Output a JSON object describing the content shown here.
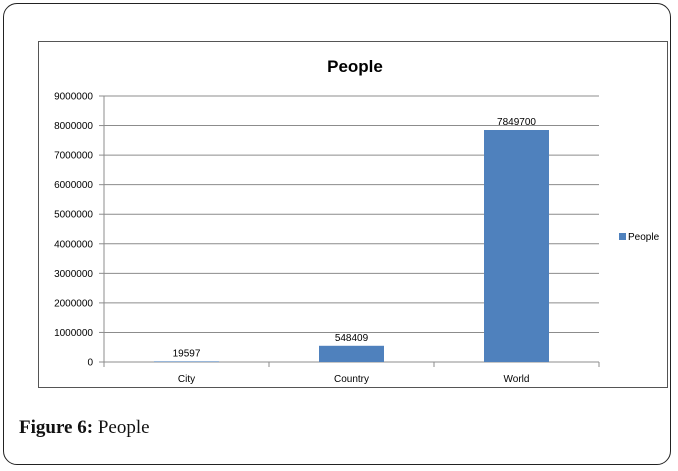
{
  "chart_data": {
    "type": "bar",
    "title": "People",
    "categories": [
      "City",
      "Country",
      "World"
    ],
    "series": [
      {
        "name": "People",
        "values": [
          19597,
          548409,
          7849700
        ],
        "color": "#4f81bd"
      }
    ],
    "y_ticks": [
      0,
      1000000,
      2000000,
      3000000,
      4000000,
      5000000,
      6000000,
      7000000,
      8000000,
      9000000
    ],
    "ylim": [
      0,
      9000000
    ],
    "xlabel": "",
    "ylabel": "",
    "grid": true,
    "legend_position": "right",
    "data_labels": true
  },
  "caption": {
    "label": "Figure 6:",
    "text": "People"
  }
}
